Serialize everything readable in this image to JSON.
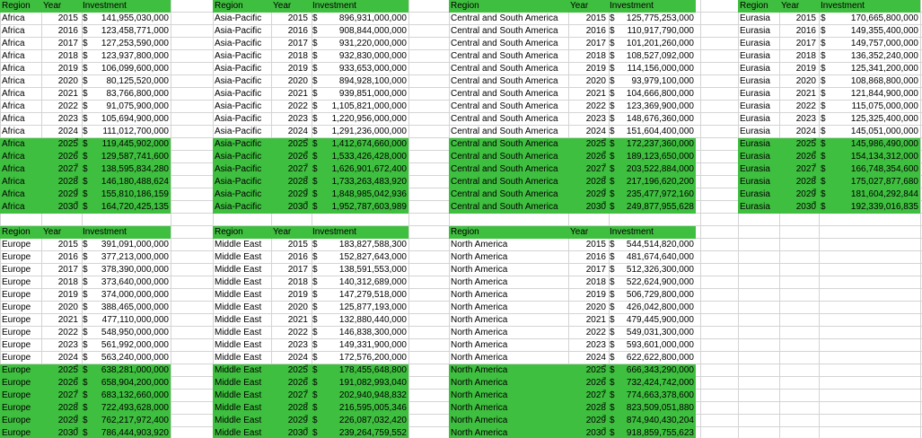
{
  "headers": {
    "region": "Region",
    "year": "Year",
    "investment": "Investment"
  },
  "blocks": [
    {
      "region": "Africa",
      "rows": [
        [
          "2015",
          "$",
          "141,955,030,000"
        ],
        [
          "2016",
          "$",
          "123,458,771,000"
        ],
        [
          "2017",
          "$",
          "127,253,590,000"
        ],
        [
          "2018",
          "$",
          "123,937,800,000"
        ],
        [
          "2019",
          "$",
          "106,099,600,000"
        ],
        [
          "2020",
          "$",
          "80,125,520,000"
        ],
        [
          "2021",
          "$",
          "83,766,800,000"
        ],
        [
          "2022",
          "$",
          "91,075,900,000"
        ],
        [
          "2023",
          "$",
          "105,694,900,000"
        ],
        [
          "2024",
          "$",
          "111,012,700,000"
        ],
        [
          "2025",
          "$",
          "119,445,902,000"
        ],
        [
          "2026",
          "$",
          "129,587,741,600"
        ],
        [
          "2027",
          "$",
          "138,595,834,280"
        ],
        [
          "2028",
          "$",
          "146,180,488,624"
        ],
        [
          "2029",
          "$",
          "155,810,186,159"
        ],
        [
          "2030",
          "$",
          "164,720,425,135"
        ]
      ]
    },
    {
      "region": "Asia-Pacific",
      "rows": [
        [
          "2015",
          "$",
          "896,931,000,000"
        ],
        [
          "2016",
          "$",
          "908,844,000,000"
        ],
        [
          "2017",
          "$",
          "931,220,000,000"
        ],
        [
          "2018",
          "$",
          "932,830,000,000"
        ],
        [
          "2019",
          "$",
          "933,653,000,000"
        ],
        [
          "2020",
          "$",
          "894,928,100,000"
        ],
        [
          "2021",
          "$",
          "939,851,000,000"
        ],
        [
          "2022",
          "$",
          "1,105,821,000,000"
        ],
        [
          "2023",
          "$",
          "1,220,956,000,000"
        ],
        [
          "2024",
          "$",
          "1,291,236,000,000"
        ],
        [
          "2025",
          "$",
          "1,412,674,660,000"
        ],
        [
          "2026",
          "$",
          "1,533,426,428,000"
        ],
        [
          "2027",
          "$",
          "1,626,901,672,400"
        ],
        [
          "2028",
          "$",
          "1,733,263,483,920"
        ],
        [
          "2029",
          "$",
          "1,848,985,042,936"
        ],
        [
          "2030",
          "$",
          "1,952,787,603,989"
        ]
      ]
    },
    {
      "region": "Central and South America",
      "rows": [
        [
          "2015",
          "$",
          "125,775,253,000"
        ],
        [
          "2016",
          "$",
          "110,917,790,000"
        ],
        [
          "2017",
          "$",
          "101,201,260,000"
        ],
        [
          "2018",
          "$",
          "108,527,092,000"
        ],
        [
          "2019",
          "$",
          "114,156,000,000"
        ],
        [
          "2020",
          "$",
          "93,979,100,000"
        ],
        [
          "2021",
          "$",
          "104,666,800,000"
        ],
        [
          "2022",
          "$",
          "123,369,900,000"
        ],
        [
          "2023",
          "$",
          "148,676,360,000"
        ],
        [
          "2024",
          "$",
          "151,604,400,000"
        ],
        [
          "2025",
          "$",
          "172,237,360,000"
        ],
        [
          "2026",
          "$",
          "189,123,650,000"
        ],
        [
          "2027",
          "$",
          "203,522,884,000"
        ],
        [
          "2028",
          "$",
          "217,196,620,200"
        ],
        [
          "2029",
          "$",
          "235,477,972,160"
        ],
        [
          "2030",
          "$",
          "249,877,955,628"
        ]
      ]
    },
    {
      "region": "Eurasia",
      "rows": [
        [
          "2015",
          "$",
          "170,665,800,000"
        ],
        [
          "2016",
          "$",
          "149,355,400,000"
        ],
        [
          "2017",
          "$",
          "149,757,000,000"
        ],
        [
          "2018",
          "$",
          "136,352,240,000"
        ],
        [
          "2019",
          "$",
          "125,341,200,000"
        ],
        [
          "2020",
          "$",
          "108,868,800,000"
        ],
        [
          "2021",
          "$",
          "121,844,900,000"
        ],
        [
          "2022",
          "$",
          "115,075,000,000"
        ],
        [
          "2023",
          "$",
          "125,325,400,000"
        ],
        [
          "2024",
          "$",
          "145,051,000,000"
        ],
        [
          "2025",
          "$",
          "145,986,490,000"
        ],
        [
          "2026",
          "$",
          "154,134,312,000"
        ],
        [
          "2027",
          "$",
          "166,748,354,600"
        ],
        [
          "2028",
          "$",
          "175,027,877,680"
        ],
        [
          "2029",
          "$",
          "181,604,292,844"
        ],
        [
          "2030",
          "$",
          "192,339,016,835"
        ]
      ]
    },
    {
      "region": "Europe",
      "rows": [
        [
          "2015",
          "$",
          "391,091,000,000"
        ],
        [
          "2016",
          "$",
          "377,213,000,000"
        ],
        [
          "2017",
          "$",
          "378,390,000,000"
        ],
        [
          "2018",
          "$",
          "373,640,000,000"
        ],
        [
          "2019",
          "$",
          "374,000,000,000"
        ],
        [
          "2020",
          "$",
          "388,465,000,000"
        ],
        [
          "2021",
          "$",
          "477,110,000,000"
        ],
        [
          "2022",
          "$",
          "548,950,000,000"
        ],
        [
          "2023",
          "$",
          "561,992,000,000"
        ],
        [
          "2024",
          "$",
          "563,240,000,000"
        ],
        [
          "2025",
          "$",
          "638,281,000,000"
        ],
        [
          "2026",
          "$",
          "658,904,200,000"
        ],
        [
          "2027",
          "$",
          "683,132,660,000"
        ],
        [
          "2028",
          "$",
          "722,493,628,000"
        ],
        [
          "2029",
          "$",
          "762,217,972,400"
        ],
        [
          "2030",
          "$",
          "786,444,903,920"
        ]
      ]
    },
    {
      "region": "Middle East",
      "rows": [
        [
          "2015",
          "$",
          "183,827,588,300"
        ],
        [
          "2016",
          "$",
          "152,827,643,000"
        ],
        [
          "2017",
          "$",
          "138,591,553,000"
        ],
        [
          "2018",
          "$",
          "140,312,689,000"
        ],
        [
          "2019",
          "$",
          "147,279,518,000"
        ],
        [
          "2020",
          "$",
          "125,877,193,000"
        ],
        [
          "2021",
          "$",
          "132,880,440,000"
        ],
        [
          "2022",
          "$",
          "146,838,300,000"
        ],
        [
          "2023",
          "$",
          "149,331,900,000"
        ],
        [
          "2024",
          "$",
          "172,576,200,000"
        ],
        [
          "2025",
          "$",
          "178,455,648,800"
        ],
        [
          "2026",
          "$",
          "191,082,993,040"
        ],
        [
          "2027",
          "$",
          "202,940,948,832"
        ],
        [
          "2028",
          "$",
          "216,595,005,346"
        ],
        [
          "2029",
          "$",
          "226,087,032,420"
        ],
        [
          "2030",
          "$",
          "239,264,759,552"
        ]
      ]
    },
    {
      "region": "North America",
      "rows": [
        [
          "2015",
          "$",
          "544,514,820,000"
        ],
        [
          "2016",
          "$",
          "481,674,640,000"
        ],
        [
          "2017",
          "$",
          "512,326,300,000"
        ],
        [
          "2018",
          "$",
          "522,624,900,000"
        ],
        [
          "2019",
          "$",
          "506,729,800,000"
        ],
        [
          "2020",
          "$",
          "426,042,800,000"
        ],
        [
          "2021",
          "$",
          "479,445,900,000"
        ],
        [
          "2022",
          "$",
          "549,031,300,000"
        ],
        [
          "2023",
          "$",
          "593,601,000,000"
        ],
        [
          "2024",
          "$",
          "622,622,800,000"
        ],
        [
          "2025",
          "$",
          "666,343,290,000"
        ],
        [
          "2026",
          "$",
          "732,424,742,000"
        ],
        [
          "2027",
          "$",
          "774,663,378,600"
        ],
        [
          "2028",
          "$",
          "823,509,051,880"
        ],
        [
          "2029",
          "$",
          "874,940,430,204"
        ],
        [
          "2030",
          "$",
          "918,859,755,623"
        ]
      ]
    }
  ]
}
